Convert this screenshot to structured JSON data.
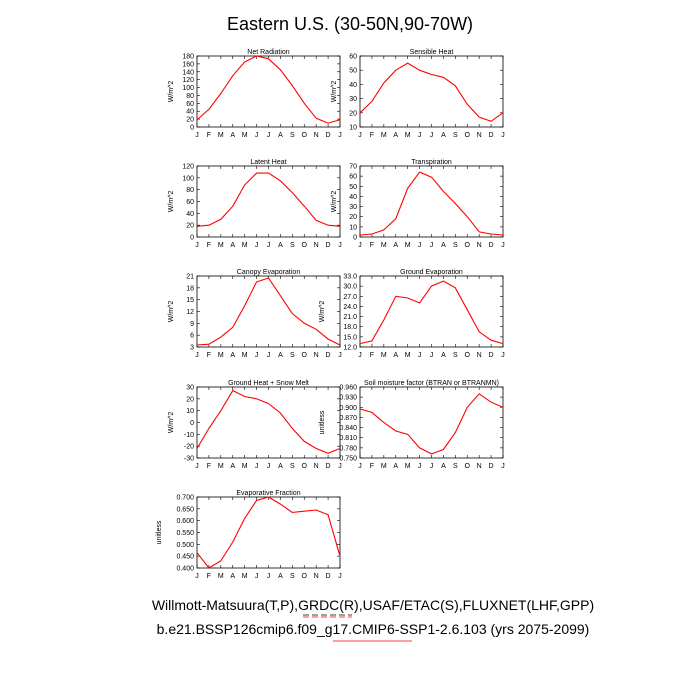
{
  "figure": {
    "title": "Eastern U.S. (30-50N,90-70W)",
    "footer_line1": "Willmott-Matsuura(T,P),GRDC(R),USAF/ETAC(S),FLUXNET(LHF,GPP)",
    "footer_line2": "b.e21.BSSP126cmip6.f09_g17.CMIP6-SSP1-2.6.103 (yrs 2075-2099)",
    "legend_colors": [
      "#000000",
      "#ff0000"
    ],
    "line_color": "#ff0000"
  },
  "chart_data": [
    {
      "type": "line",
      "title": "Net Radiation",
      "ylabel": "W/m^2",
      "categories": [
        "J",
        "F",
        "M",
        "A",
        "M",
        "J",
        "J",
        "A",
        "S",
        "O",
        "N",
        "D",
        "J"
      ],
      "ylim": [
        0,
        180
      ],
      "yticks": [
        "0",
        "20",
        "40",
        "60",
        "80",
        "100",
        "120",
        "140",
        "160",
        "180"
      ],
      "series": [
        {
          "values": [
            18,
            45,
            85,
            130,
            165,
            180,
            173,
            145,
            105,
            60,
            22,
            10,
            18
          ]
        }
      ]
    },
    {
      "type": "line",
      "title": "Sensible Heat",
      "ylabel": "W/m^2",
      "categories": [
        "J",
        "F",
        "M",
        "A",
        "M",
        "J",
        "J",
        "A",
        "S",
        "O",
        "N",
        "D",
        "J"
      ],
      "ylim": [
        10,
        60
      ],
      "yticks": [
        "10",
        "20",
        "30",
        "40",
        "50",
        "60"
      ],
      "series": [
        {
          "values": [
            20,
            28,
            41,
            50,
            55,
            50,
            47,
            45,
            39,
            26,
            17,
            14,
            20
          ]
        }
      ]
    },
    {
      "type": "line",
      "title": "Latent Heat",
      "ylabel": "W/m^2",
      "categories": [
        "J",
        "F",
        "M",
        "A",
        "M",
        "J",
        "J",
        "A",
        "S",
        "O",
        "N",
        "D",
        "J"
      ],
      "ylim": [
        0,
        120
      ],
      "yticks": [
        "0",
        "20",
        "40",
        "60",
        "80",
        "100",
        "120"
      ],
      "series": [
        {
          "values": [
            18,
            20,
            30,
            52,
            88,
            108,
            108,
            95,
            75,
            52,
            28,
            20,
            18
          ]
        }
      ]
    },
    {
      "type": "line",
      "title": "Transpiration",
      "ylabel": "W/m^2",
      "categories": [
        "J",
        "F",
        "M",
        "A",
        "M",
        "J",
        "J",
        "A",
        "S",
        "O",
        "N",
        "D",
        "J"
      ],
      "ylim": [
        0,
        70
      ],
      "yticks": [
        "0",
        "10",
        "20",
        "30",
        "40",
        "50",
        "60",
        "70"
      ],
      "series": [
        {
          "values": [
            2,
            3,
            7,
            18,
            48,
            64,
            59,
            45,
            33,
            20,
            5,
            3,
            2
          ]
        }
      ]
    },
    {
      "type": "line",
      "title": "Canopy Evaporation",
      "ylabel": "W/m^2",
      "categories": [
        "J",
        "F",
        "M",
        "A",
        "M",
        "J",
        "J",
        "A",
        "S",
        "O",
        "N",
        "D",
        "J"
      ],
      "ylim": [
        3,
        21
      ],
      "yticks": [
        "3",
        "6",
        "9",
        "12",
        "15",
        "18",
        "21"
      ],
      "series": [
        {
          "values": [
            3.5,
            3.7,
            5.5,
            8,
            13.5,
            19.5,
            20.5,
            16,
            11.5,
            9,
            7.5,
            5,
            3.5
          ]
        }
      ]
    },
    {
      "type": "line",
      "title": "Ground Evaporation",
      "ylabel": "W/m^2",
      "categories": [
        "J",
        "F",
        "M",
        "A",
        "M",
        "J",
        "J",
        "A",
        "S",
        "O",
        "N",
        "D",
        "J"
      ],
      "ylim": [
        12,
        33
      ],
      "yticks": [
        "12.0",
        "15.0",
        "18.0",
        "21.0",
        "24.0",
        "27.0",
        "30.0",
        "33.0"
      ],
      "series": [
        {
          "values": [
            13,
            13.8,
            20,
            27,
            26.5,
            25,
            30,
            31.5,
            29.5,
            23,
            16.5,
            14,
            13
          ]
        }
      ]
    },
    {
      "type": "line",
      "title": "Ground Heat + Snow Melt",
      "ylabel": "W/m^2",
      "categories": [
        "J",
        "F",
        "M",
        "A",
        "M",
        "J",
        "J",
        "A",
        "S",
        "O",
        "N",
        "D",
        "J"
      ],
      "ylim": [
        -30,
        30
      ],
      "yticks": [
        "-30",
        "-20",
        "-10",
        "0",
        "10",
        "20",
        "30"
      ],
      "series": [
        {
          "values": [
            -22,
            -5,
            10,
            27,
            22,
            20,
            16,
            8,
            -5,
            -16,
            -22,
            -26,
            -22
          ]
        }
      ]
    },
    {
      "type": "line",
      "title": "Soil moisture factor (BTRAN or BTRANMN)",
      "ylabel": "unitless",
      "categories": [
        "J",
        "F",
        "M",
        "A",
        "M",
        "J",
        "J",
        "A",
        "S",
        "O",
        "N",
        "D",
        "J"
      ],
      "ylim": [
        0.75,
        0.96
      ],
      "yticks": [
        "0.750",
        "0.780",
        "0.810",
        "0.840",
        "0.870",
        "0.900",
        "0.930",
        "0.960"
      ],
      "series": [
        {
          "values": [
            0.895,
            0.885,
            0.855,
            0.83,
            0.82,
            0.78,
            0.762,
            0.775,
            0.825,
            0.9,
            0.94,
            0.915,
            0.9
          ]
        }
      ]
    },
    {
      "type": "line",
      "title": "Evaporative Fraction",
      "ylabel": "unitless",
      "categories": [
        "J",
        "F",
        "M",
        "A",
        "M",
        "J",
        "J",
        "A",
        "S",
        "O",
        "N",
        "D",
        "J"
      ],
      "ylim": [
        0.4,
        0.7
      ],
      "yticks": [
        "0.400",
        "0.450",
        "0.500",
        "0.550",
        "0.600",
        "0.650",
        "0.700"
      ],
      "series": [
        {
          "values": [
            0.465,
            0.4,
            0.43,
            0.51,
            0.61,
            0.685,
            0.7,
            0.67,
            0.635,
            0.64,
            0.645,
            0.625,
            0.45
          ]
        }
      ]
    }
  ]
}
